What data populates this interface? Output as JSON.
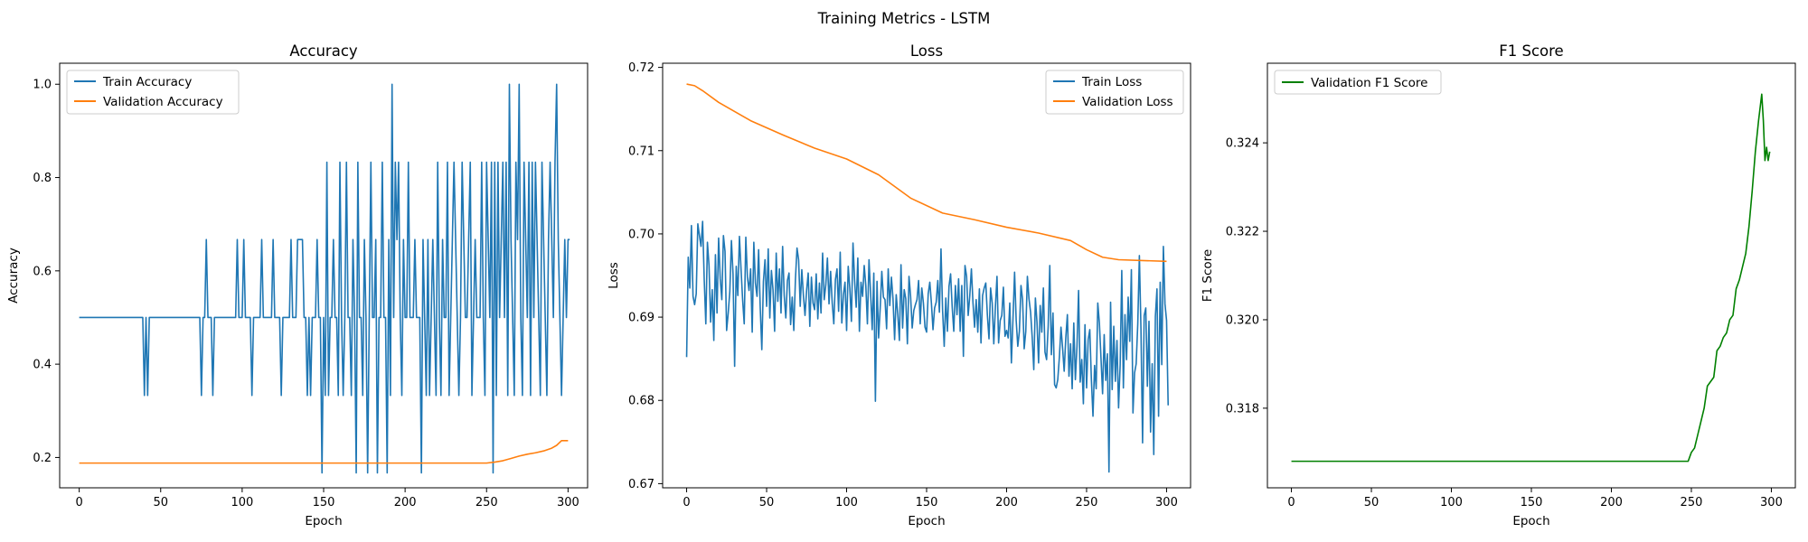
{
  "figure": {
    "suptitle": "Training Metrics - LSTM"
  },
  "chart_data": [
    {
      "type": "line",
      "title": "Accuracy",
      "xlabel": "Epoch",
      "ylabel": "Accuracy",
      "xlim": [
        -12,
        312
      ],
      "ylim": [
        0.135,
        1.045
      ],
      "xticks": [
        0,
        50,
        100,
        150,
        200,
        250,
        300
      ],
      "yticks": [
        0.2,
        0.4,
        0.6,
        0.8,
        1.0
      ],
      "ytick_decimals": 1,
      "legend": "top-left",
      "grid": false,
      "series": [
        {
          "name": "Train Accuracy",
          "color": "#1f77b4",
          "x_start": 0,
          "values": [
            0.5,
            0.5,
            0.5,
            0.5,
            0.5,
            0.5,
            0.5,
            0.5,
            0.5,
            0.5,
            0.5,
            0.5,
            0.5,
            0.5,
            0.5,
            0.5,
            0.5,
            0.5,
            0.5,
            0.5,
            0.5,
            0.5,
            0.5,
            0.5,
            0.5,
            0.5,
            0.5,
            0.5,
            0.5,
            0.5,
            0.5,
            0.5,
            0.5,
            0.5,
            0.5,
            0.5,
            0.5,
            0.5,
            0.5,
            0.5,
            0.333,
            0.5,
            0.333,
            0.5,
            0.5,
            0.5,
            0.5,
            0.5,
            0.5,
            0.5,
            0.5,
            0.5,
            0.5,
            0.5,
            0.5,
            0.5,
            0.5,
            0.5,
            0.5,
            0.5,
            0.5,
            0.5,
            0.5,
            0.5,
            0.5,
            0.5,
            0.5,
            0.5,
            0.5,
            0.5,
            0.5,
            0.5,
            0.5,
            0.5,
            0.5,
            0.333,
            0.5,
            0.5,
            0.667,
            0.5,
            0.5,
            0.5,
            0.333,
            0.5,
            0.5,
            0.5,
            0.5,
            0.5,
            0.5,
            0.5,
            0.5,
            0.5,
            0.5,
            0.5,
            0.5,
            0.5,
            0.5,
            0.667,
            0.5,
            0.5,
            0.5,
            0.667,
            0.5,
            0.5,
            0.5,
            0.5,
            0.333,
            0.5,
            0.5,
            0.5,
            0.5,
            0.5,
            0.667,
            0.5,
            0.5,
            0.5,
            0.5,
            0.5,
            0.5,
            0.667,
            0.5,
            0.5,
            0.5,
            0.5,
            0.333,
            0.5,
            0.5,
            0.5,
            0.5,
            0.5,
            0.667,
            0.5,
            0.5,
            0.5,
            0.667,
            0.667,
            0.667,
            0.667,
            0.5,
            0.5,
            0.333,
            0.5,
            0.333,
            0.5,
            0.5,
            0.5,
            0.667,
            0.5,
            0.5,
            0.167,
            0.5,
            0.333,
            0.833,
            0.333,
            0.5,
            0.5,
            0.667,
            0.5,
            0.5,
            0.333,
            0.833,
            0.5,
            0.333,
            0.5,
            0.833,
            0.5,
            0.5,
            0.333,
            0.667,
            0.5,
            0.167,
            0.833,
            0.5,
            0.5,
            0.333,
            0.667,
            0.5,
            0.167,
            0.5,
            0.833,
            0.5,
            0.5,
            0.667,
            0.167,
            0.5,
            0.5,
            0.833,
            0.5,
            0.5,
            0.167,
            0.667,
            0.333,
            1.0,
            0.5,
            0.833,
            0.667,
            0.833,
            0.5,
            0.333,
            0.667,
            0.5,
            0.5,
            0.833,
            0.5,
            0.5,
            0.5,
            0.667,
            0.5,
            0.5,
            0.5,
            0.167,
            0.667,
            0.5,
            0.333,
            0.667,
            0.333,
            0.5,
            0.667,
            0.5,
            0.333,
            0.833,
            0.5,
            0.333,
            0.667,
            0.5,
            0.5,
            0.833,
            0.333,
            0.5,
            0.667,
            0.833,
            0.667,
            0.5,
            0.333,
            0.5,
            0.833,
            0.667,
            0.5,
            0.5,
            0.667,
            0.833,
            0.333,
            0.5,
            0.667,
            0.5,
            0.5,
            0.5,
            0.833,
            0.5,
            0.333,
            0.833,
            0.667,
            0.5,
            0.833,
            0.167,
            0.833,
            0.333,
            0.833,
            0.5,
            0.667,
            0.833,
            0.5,
            0.833,
            0.333,
            1.0,
            0.667,
            0.5,
            0.333,
            0.833,
            0.667,
            1.0,
            0.5,
            0.333,
            0.833,
            0.667,
            0.5,
            0.833,
            0.333,
            0.833,
            0.5,
            0.833,
            0.667,
            0.5,
            0.333,
            0.833,
            0.667,
            0.5,
            0.333,
            0.667,
            0.833,
            0.667,
            0.5,
            0.833,
            1.0,
            0.667,
            0.5,
            0.333,
            0.5,
            0.667,
            0.5,
            0.667,
            0.667
          ]
        },
        {
          "name": "Validation Accuracy",
          "color": "#ff7f0e",
          "x": [
            0,
            250,
            255,
            260,
            265,
            270,
            275,
            280,
            285,
            290,
            293,
            296,
            300
          ],
          "values": [
            0.188,
            0.188,
            0.19,
            0.193,
            0.198,
            0.203,
            0.207,
            0.21,
            0.214,
            0.22,
            0.226,
            0.236,
            0.236
          ]
        }
      ]
    },
    {
      "type": "line",
      "title": "Loss",
      "xlabel": "Epoch",
      "ylabel": "Loss",
      "xlim": [
        -15,
        315
      ],
      "ylim": [
        0.6695,
        0.7205
      ],
      "xticks": [
        0,
        50,
        100,
        150,
        200,
        250,
        300
      ],
      "yticks": [
        0.67,
        0.68,
        0.69,
        0.7,
        0.71,
        0.72
      ],
      "ytick_decimals": 2,
      "legend": "top-right",
      "grid": false,
      "series": [
        {
          "name": "Train Loss",
          "color": "#1f77b4",
          "x_start": 0,
          "values": [
            0.6852,
            0.6972,
            0.6935,
            0.701,
            0.6925,
            0.6915,
            0.6928,
            0.7012,
            0.6998,
            0.6985,
            0.7015,
            0.6945,
            0.6892,
            0.699,
            0.6962,
            0.6894,
            0.6933,
            0.6872,
            0.6975,
            0.6905,
            0.6995,
            0.6946,
            0.6921,
            0.6998,
            0.6979,
            0.6884,
            0.6905,
            0.6931,
            0.6992,
            0.6952,
            0.6841,
            0.6961,
            0.6926,
            0.6997,
            0.6958,
            0.6921,
            0.6892,
            0.6996,
            0.6948,
            0.6932,
            0.6958,
            0.6882,
            0.699,
            0.6941,
            0.6925,
            0.6981,
            0.6912,
            0.6861,
            0.6943,
            0.6969,
            0.6913,
            0.6982,
            0.6899,
            0.6956,
            0.6933,
            0.6883,
            0.6977,
            0.6919,
            0.6958,
            0.6905,
            0.6985,
            0.6926,
            0.6899,
            0.6944,
            0.6953,
            0.6891,
            0.6924,
            0.6884,
            0.6945,
            0.6983,
            0.6969,
            0.6913,
            0.6957,
            0.6926,
            0.6902,
            0.6932,
            0.6953,
            0.6889,
            0.6948,
            0.6917,
            0.6909,
            0.6952,
            0.6898,
            0.6941,
            0.6905,
            0.6977,
            0.6921,
            0.6939,
            0.6971,
            0.6916,
            0.6955,
            0.6917,
            0.6892,
            0.6945,
            0.6958,
            0.6907,
            0.6978,
            0.6893,
            0.6927,
            0.6942,
            0.6884,
            0.6961,
            0.6935,
            0.6895,
            0.6989,
            0.6944,
            0.6912,
            0.6971,
            0.6883,
            0.6942,
            0.6925,
            0.6962,
            0.6938,
            0.6892,
            0.6969,
            0.6929,
            0.6885,
            0.6953,
            0.6799,
            0.6943,
            0.6875,
            0.6911,
            0.6955,
            0.6924,
            0.6921,
            0.6886,
            0.6958,
            0.6914,
            0.6948,
            0.6922,
            0.6873,
            0.6927,
            0.6903,
            0.6872,
            0.6963,
            0.6887,
            0.6933,
            0.6922,
            0.6868,
            0.6949,
            0.6925,
            0.6887,
            0.6908,
            0.6915,
            0.6921,
            0.6944,
            0.6892,
            0.6935,
            0.6917,
            0.6888,
            0.6882,
            0.6928,
            0.6942,
            0.6917,
            0.6885,
            0.6911,
            0.6918,
            0.6944,
            0.6906,
            0.6982,
            0.6908,
            0.6865,
            0.6923,
            0.6883,
            0.6937,
            0.6952,
            0.6912,
            0.6883,
            0.6938,
            0.6903,
            0.6946,
            0.6883,
            0.6938,
            0.6853,
            0.6962,
            0.6949,
            0.6902,
            0.6926,
            0.6958,
            0.6917,
            0.6888,
            0.6921,
            0.6882,
            0.6934,
            0.6869,
            0.6926,
            0.6935,
            0.6941,
            0.6902,
            0.6874,
            0.6935,
            0.6917,
            0.6868,
            0.6912,
            0.6949,
            0.6869,
            0.6896,
            0.6902,
            0.6936,
            0.6877,
            0.6884,
            0.6875,
            0.6917,
            0.6845,
            0.6898,
            0.6954,
            0.6896,
            0.6865,
            0.6883,
            0.6938,
            0.6921,
            0.6862,
            0.6883,
            0.6949,
            0.6922,
            0.6906,
            0.6876,
            0.6837,
            0.6923,
            0.6894,
            0.6845,
            0.6914,
            0.6882,
            0.6935,
            0.6858,
            0.6849,
            0.6889,
            0.6962,
            0.6855,
            0.6905,
            0.6819,
            0.6815,
            0.6825,
            0.6852,
            0.6888,
            0.6863,
            0.6835,
            0.6875,
            0.6903,
            0.6829,
            0.6868,
            0.6814,
            0.6893,
            0.6825,
            0.6865,
            0.6932,
            0.6822,
            0.6849,
            0.6796,
            0.6891,
            0.6815,
            0.6873,
            0.6885,
            0.6825,
            0.6781,
            0.6842,
            0.6814,
            0.6917,
            0.6893,
            0.6851,
            0.6808,
            0.6879,
            0.6824,
            0.6856,
            0.6714,
            0.6918,
            0.6813,
            0.6889,
            0.6823,
            0.6872,
            0.6791,
            0.6843,
            0.6956,
            0.6815,
            0.6903,
            0.6849,
            0.6924,
            0.6871,
            0.6957,
            0.6785,
            0.6833,
            0.6844,
            0.6892,
            0.6974,
            0.6885,
            0.6749,
            0.6902,
            0.6911,
            0.6817,
            0.6895,
            0.6762,
            0.6844,
            0.6735,
            0.6901,
            0.6934,
            0.6781,
            0.6942,
            0.6843,
            0.6985,
            0.6916,
            0.6896,
            0.6794
          ]
        },
        {
          "name": "Validation Loss",
          "color": "#ff7f0e",
          "x": [
            0,
            5,
            10,
            20,
            40,
            60,
            80,
            100,
            120,
            140,
            160,
            180,
            200,
            220,
            240,
            250,
            260,
            270,
            285,
            300
          ],
          "values": [
            0.718,
            0.7178,
            0.7172,
            0.7158,
            0.7136,
            0.7119,
            0.7103,
            0.709,
            0.7071,
            0.7043,
            0.7025,
            0.7017,
            0.7008,
            0.7001,
            0.6992,
            0.6981,
            0.6972,
            0.6969,
            0.6968,
            0.6967
          ]
        }
      ]
    },
    {
      "type": "line",
      "title": "F1 Score",
      "xlabel": "Epoch",
      "ylabel": "F1 Score",
      "xlim": [
        -15,
        315
      ],
      "ylim": [
        0.3162,
        0.3258
      ],
      "xticks": [
        0,
        50,
        100,
        150,
        200,
        250,
        300
      ],
      "yticks": [
        0.318,
        0.32,
        0.322,
        0.324
      ],
      "ytick_decimals": 3,
      "legend": "top-left",
      "grid": false,
      "series": [
        {
          "name": "Validation F1 Score",
          "color": "#008000",
          "x": [
            0,
            248,
            250,
            252,
            254,
            256,
            258,
            260,
            262,
            264,
            266,
            268,
            270,
            272,
            274,
            276,
            278,
            280,
            282,
            284,
            286,
            288,
            290,
            292,
            294,
            295,
            296,
            297,
            298,
            299
          ],
          "values": [
            0.3168,
            0.3168,
            0.317,
            0.3171,
            0.3174,
            0.3177,
            0.318,
            0.3185,
            0.3186,
            0.3187,
            0.3193,
            0.3194,
            0.3196,
            0.3197,
            0.32,
            0.3201,
            0.3207,
            0.3209,
            0.3212,
            0.3215,
            0.3221,
            0.3229,
            0.3238,
            0.3245,
            0.3251,
            0.3245,
            0.3236,
            0.3239,
            0.3236,
            0.3238
          ]
        }
      ]
    }
  ]
}
